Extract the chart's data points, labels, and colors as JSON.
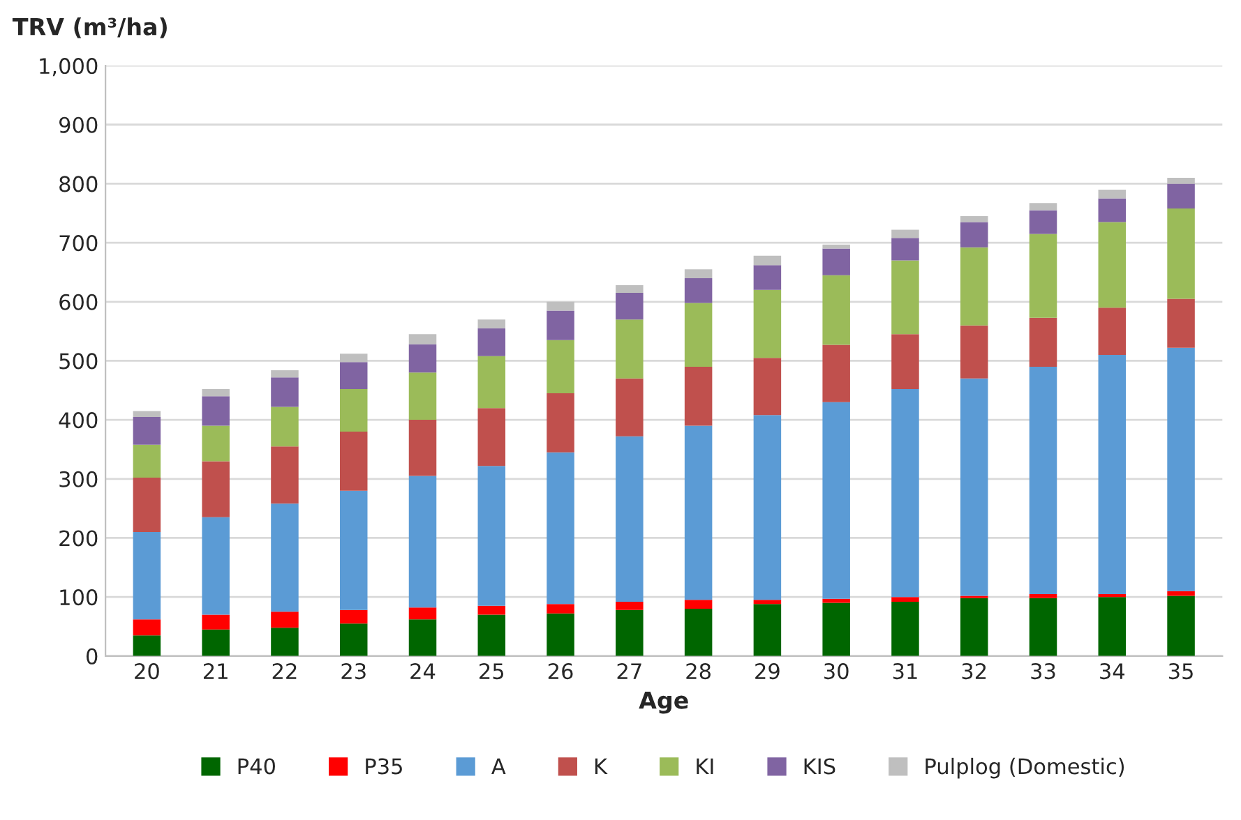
{
  "chart_data": {
    "type": "bar",
    "stacked": true,
    "ylabel": "TRV (m³/ha)",
    "xlabel": "Age",
    "categories": [
      "20",
      "21",
      "22",
      "23",
      "24",
      "25",
      "26",
      "27",
      "28",
      "29",
      "30",
      "31",
      "32",
      "33",
      "34",
      "35"
    ],
    "series": [
      {
        "name": "P40",
        "color": "#006600",
        "values": [
          35,
          45,
          48,
          55,
          62,
          70,
          72,
          78,
          80,
          88,
          90,
          92,
          98,
          98,
          100,
          102
        ]
      },
      {
        "name": "P35",
        "color": "#ff0000",
        "values": [
          27,
          25,
          27,
          23,
          20,
          15,
          16,
          14,
          15,
          7,
          7,
          8,
          4,
          7,
          5,
          8
        ]
      },
      {
        "name": "A",
        "color": "#5b9bd5",
        "values": [
          148,
          165,
          183,
          202,
          223,
          237,
          257,
          280,
          295,
          313,
          333,
          352,
          368,
          385,
          405,
          412
        ]
      },
      {
        "name": "K",
        "color": "#c0504d",
        "values": [
          92,
          95,
          97,
          100,
          95,
          98,
          100,
          98,
          100,
          97,
          97,
          93,
          90,
          83,
          80,
          83
        ]
      },
      {
        "name": "KI",
        "color": "#9bbb59",
        "values": [
          56,
          60,
          67,
          72,
          80,
          88,
          90,
          100,
          108,
          115,
          118,
          125,
          132,
          142,
          145,
          153
        ]
      },
      {
        "name": "KIS",
        "color": "#8064a2",
        "values": [
          47,
          50,
          50,
          46,
          48,
          47,
          50,
          45,
          42,
          42,
          45,
          38,
          43,
          40,
          40,
          42
        ]
      },
      {
        "name": "Pulplog (Domestic)",
        "color": "#bfbfbf",
        "values": [
          10,
          12,
          12,
          14,
          17,
          15,
          15,
          13,
          15,
          16,
          7,
          14,
          10,
          12,
          15,
          10
        ]
      }
    ],
    "ylim": [
      0,
      1000
    ],
    "yticks": [
      0,
      100,
      200,
      300,
      400,
      500,
      600,
      700,
      800,
      900,
      {
        "value": 1000,
        "label": "1,000"
      }
    ],
    "grid": "y",
    "legend": "bottom"
  }
}
